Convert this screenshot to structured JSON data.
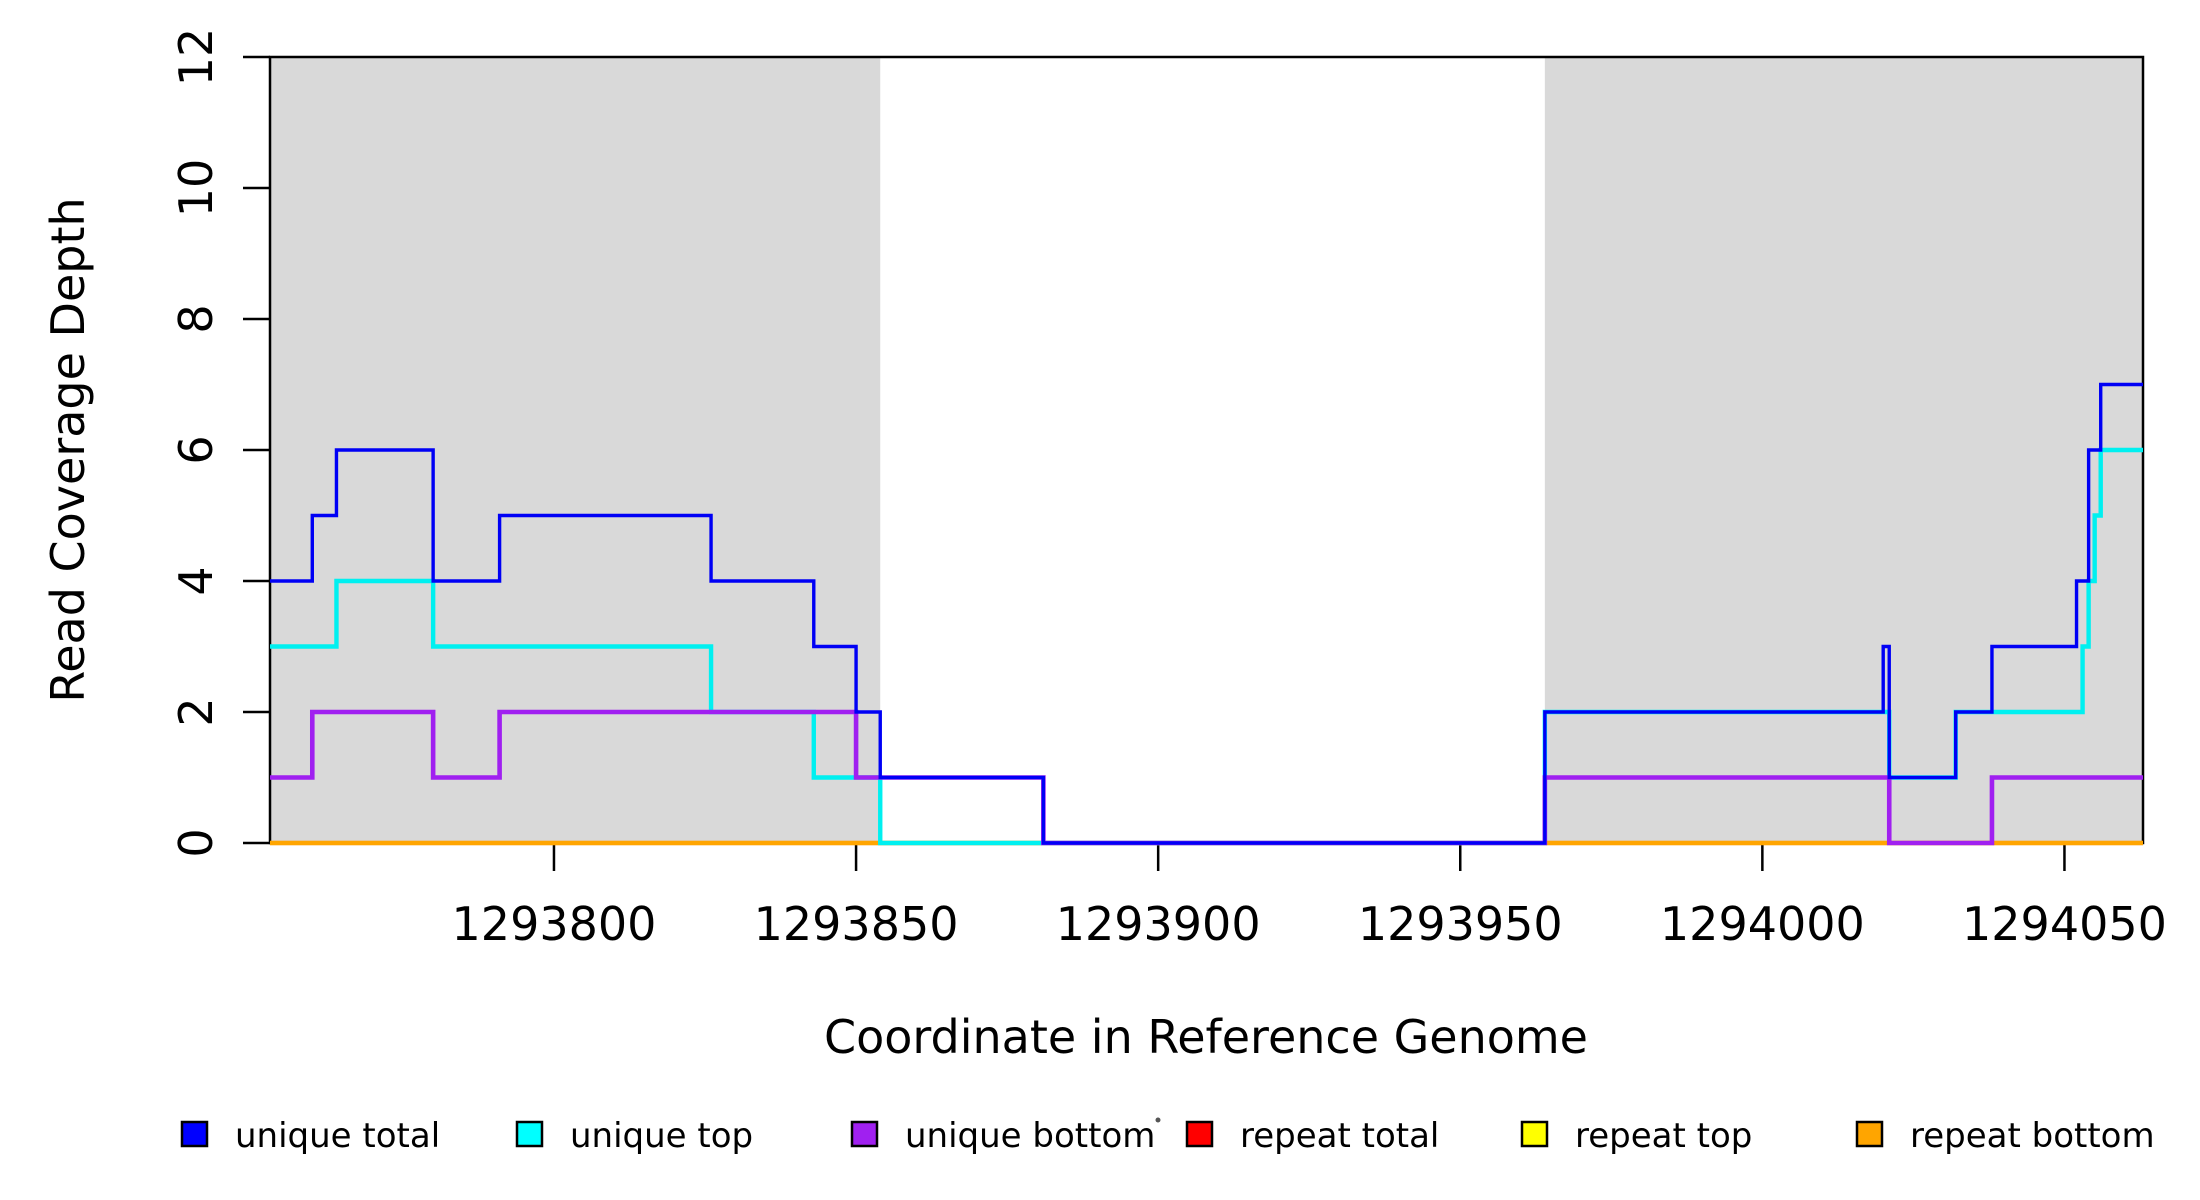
{
  "figure": {
    "background": "#FFFFFF"
  },
  "chart_data": {
    "type": "step-line-coverage",
    "xlabel": "Coordinate in Reference Genome",
    "ylabel": "Read Coverage Depth",
    "xlim": [
      1293753,
      1294063
    ],
    "ylim": [
      0,
      12
    ],
    "x_ticks": [
      1293800,
      1293850,
      1293900,
      1293950,
      1294000,
      1294050
    ],
    "y_ticks": [
      0,
      2,
      4,
      6,
      8,
      10,
      12
    ],
    "grid": false,
    "shaded_color": "#D9D9D9",
    "shaded_regions": [
      {
        "from": 1293753,
        "to": 1293854
      },
      {
        "from": 1293964,
        "to": 1294063
      }
    ],
    "series": [
      {
        "name": "unique total",
        "color": "#0000F5",
        "steps": [
          [
            1293753,
            4
          ],
          [
            1293760,
            5
          ],
          [
            1293764,
            6
          ],
          [
            1293780,
            4
          ],
          [
            1293791,
            5
          ],
          [
            1293826,
            4
          ],
          [
            1293843,
            3
          ],
          [
            1293850,
            2
          ],
          [
            1293854,
            1
          ],
          [
            1293881,
            0
          ],
          [
            1293964,
            2
          ],
          [
            1294020,
            3
          ],
          [
            1294021,
            1
          ],
          [
            1294032,
            2
          ],
          [
            1294038,
            3
          ],
          [
            1294052,
            4
          ],
          [
            1294054,
            6
          ],
          [
            1294056,
            7
          ]
        ]
      },
      {
        "name": "unique top",
        "color": "#00F0F0",
        "steps": [
          [
            1293753,
            3
          ],
          [
            1293764,
            4
          ],
          [
            1293780,
            3
          ],
          [
            1293826,
            2
          ],
          [
            1293843,
            1
          ],
          [
            1293854,
            0
          ],
          [
            1293964,
            2
          ],
          [
            1294021,
            1
          ],
          [
            1294032,
            2
          ],
          [
            1294053,
            3
          ],
          [
            1294054,
            4
          ],
          [
            1294055,
            5
          ],
          [
            1294056,
            6
          ]
        ]
      },
      {
        "name": "unique bottom",
        "color": "#A020F0",
        "steps": [
          [
            1293753,
            1
          ],
          [
            1293760,
            2
          ],
          [
            1293780,
            1
          ],
          [
            1293791,
            2
          ],
          [
            1293850,
            1
          ],
          [
            1293881,
            0
          ],
          [
            1293964,
            1
          ],
          [
            1294021,
            0
          ],
          [
            1294038,
            1
          ]
        ]
      },
      {
        "name": "repeat total",
        "color": "#FF0000",
        "steps": [
          [
            1293753,
            0
          ]
        ]
      },
      {
        "name": "repeat top",
        "color": "#FFFF00",
        "steps": [
          [
            1293753,
            0
          ]
        ]
      },
      {
        "name": "repeat bottom",
        "color": "#FFA500",
        "steps": [
          [
            1293753,
            0
          ]
        ]
      }
    ],
    "paint_order": [
      "repeat total",
      "repeat top",
      "repeat bottom",
      "unique top",
      "unique bottom",
      "unique total"
    ],
    "legend_position": "bottom"
  },
  "legend": {
    "entries": [
      {
        "label": "unique total",
        "color": "#0000FF"
      },
      {
        "label": "unique top",
        "color": "#00FFFF"
      },
      {
        "label": "unique bottom",
        "color": "#A020F0"
      },
      {
        "label": "repeat total",
        "color": "#FF0000"
      },
      {
        "label": "repeat top",
        "color": "#FFFF00"
      },
      {
        "label": "repeat bottom",
        "color": "#FFA500"
      }
    ],
    "stray_dot": "·"
  }
}
